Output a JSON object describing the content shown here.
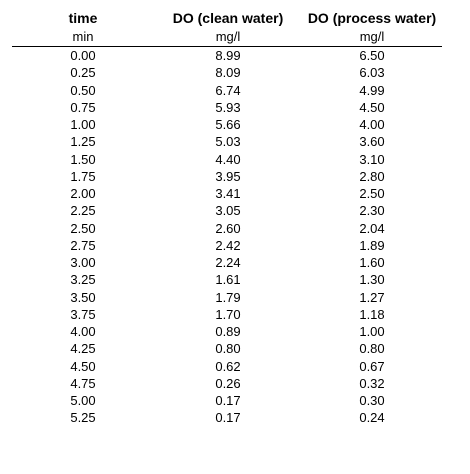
{
  "table": {
    "headers": [
      "time",
      "DO (clean water)",
      "DO (process water)"
    ],
    "units": [
      "min",
      "mg/l",
      "mg/l"
    ],
    "rows": [
      [
        "0.00",
        "8.99",
        "6.50"
      ],
      [
        "0.25",
        "8.09",
        "6.03"
      ],
      [
        "0.50",
        "6.74",
        "4.99"
      ],
      [
        "0.75",
        "5.93",
        "4.50"
      ],
      [
        "1.00",
        "5.66",
        "4.00"
      ],
      [
        "1.25",
        "5.03",
        "3.60"
      ],
      [
        "1.50",
        "4.40",
        "3.10"
      ],
      [
        "1.75",
        "3.95",
        "2.80"
      ],
      [
        "2.00",
        "3.41",
        "2.50"
      ],
      [
        "2.25",
        "3.05",
        "2.30"
      ],
      [
        "2.50",
        "2.60",
        "2.04"
      ],
      [
        "2.75",
        "2.42",
        "1.89"
      ],
      [
        "3.00",
        "2.24",
        "1.60"
      ],
      [
        "3.25",
        "1.61",
        "1.30"
      ],
      [
        "3.50",
        "1.79",
        "1.27"
      ],
      [
        "3.75",
        "1.70",
        "1.18"
      ],
      [
        "4.00",
        "0.89",
        "1.00"
      ],
      [
        "4.25",
        "0.80",
        "0.80"
      ],
      [
        "4.50",
        "0.62",
        "0.67"
      ],
      [
        "4.75",
        "0.26",
        "0.32"
      ],
      [
        "5.00",
        "0.17",
        "0.30"
      ],
      [
        "5.25",
        "0.17",
        "0.24"
      ]
    ]
  }
}
